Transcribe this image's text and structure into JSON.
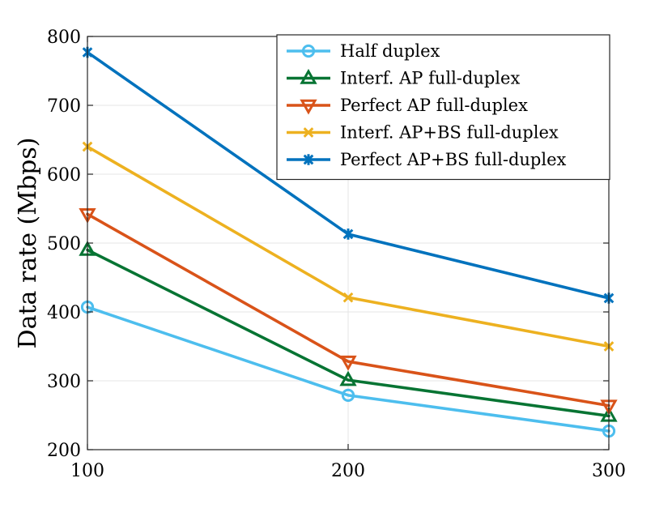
{
  "chart_data": {
    "type": "line",
    "title": "",
    "xlabel": "",
    "ylabel": "Data rate (Mbps)",
    "x": [
      100,
      200,
      300
    ],
    "xlim": [
      100,
      300
    ],
    "ylim": [
      200,
      800
    ],
    "xticks": [
      100,
      200,
      300
    ],
    "yticks": [
      200,
      300,
      400,
      500,
      600,
      700,
      800
    ],
    "grid": true,
    "legend_position": "top-right",
    "series": [
      {
        "name": "Half duplex",
        "values": [
          407,
          279,
          227
        ],
        "color": "#4DBEEE",
        "marker": "circle"
      },
      {
        "name": "Interf. AP full-duplex",
        "values": [
          490,
          301,
          249
        ],
        "color": "#077433",
        "marker": "triangle-up"
      },
      {
        "name": "Perfect AP full-duplex",
        "values": [
          542,
          328,
          264
        ],
        "color": "#D95319",
        "marker": "triangle-down"
      },
      {
        "name": "Interf. AP+BS full-duplex",
        "values": [
          640,
          421,
          350
        ],
        "color": "#EDB120",
        "marker": "x"
      },
      {
        "name": "Perfect AP+BS full-duplex",
        "values": [
          777,
          513,
          420
        ],
        "color": "#0072BD",
        "marker": "asterisk"
      }
    ]
  }
}
